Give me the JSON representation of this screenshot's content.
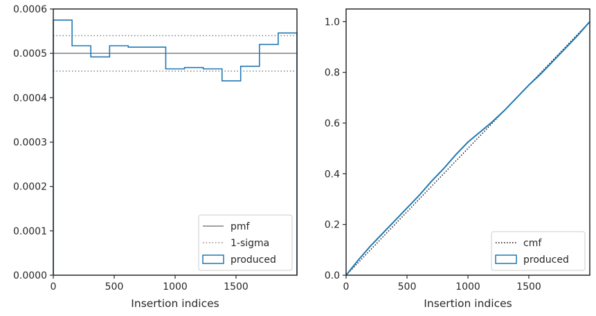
{
  "chart_data": [
    {
      "type": "histogram",
      "xlabel": "Insertion indices",
      "ylabel": "",
      "xlim": [
        0,
        2000
      ],
      "ylim": [
        0,
        0.0006
      ],
      "xticks": [
        0,
        500,
        1000,
        1500
      ],
      "yticks": [
        0.0,
        0.0001,
        0.0002,
        0.0003,
        0.0004,
        0.0005,
        0.0006
      ],
      "xtick_labels": [
        "0",
        "500",
        "1000",
        "1500"
      ],
      "ytick_labels": [
        "0.0000",
        "0.0001",
        "0.0002",
        "0.0003",
        "0.0004",
        "0.0005",
        "0.0006"
      ],
      "grid": false,
      "legend_position": "lower-right",
      "pmf_line": {
        "name": "pmf",
        "value": 0.0005,
        "color": "#808080",
        "style": "solid"
      },
      "sigma_lines": {
        "name": "1-sigma",
        "values": [
          0.00046,
          0.00054
        ],
        "color": "#808080",
        "style": "dotted"
      },
      "series": [
        {
          "name": "produced",
          "color": "#1f77b4",
          "bin_edges": [
            0,
            154,
            308,
            462,
            615,
            769,
            923,
            1077,
            1231,
            1385,
            1538,
            1692,
            1846,
            2000
          ],
          "values": [
            0.000575,
            0.000517,
            0.000492,
            0.000517,
            0.000514,
            0.000514,
            0.000465,
            0.000468,
            0.000465,
            0.000438,
            0.000471,
            0.00052,
            0.000546
          ]
        }
      ]
    },
    {
      "type": "line",
      "xlabel": "Insertion indices",
      "ylabel": "",
      "xlim": [
        0,
        2000
      ],
      "ylim": [
        0,
        1.05
      ],
      "xticks": [
        0,
        500,
        1000,
        1500
      ],
      "yticks": [
        0.0,
        0.2,
        0.4,
        0.6,
        0.8,
        1.0
      ],
      "xtick_labels": [
        "0",
        "500",
        "1000",
        "1500"
      ],
      "ytick_labels": [
        "0.0",
        "0.2",
        "0.4",
        "0.6",
        "0.8",
        "1.0"
      ],
      "grid": false,
      "legend_position": "lower-right",
      "series": [
        {
          "name": "cmf",
          "color": "#000000",
          "style": "dotted",
          "x": [
            0,
            2000
          ],
          "y": [
            0,
            1.0
          ]
        },
        {
          "name": "produced",
          "color": "#1f77b4",
          "style": "solid",
          "x": [
            0,
            100,
            200,
            300,
            400,
            500,
            550,
            600,
            700,
            800,
            900,
            1000,
            1100,
            1200,
            1300,
            1400,
            1500,
            1600,
            1700,
            1800,
            1900,
            2000
          ],
          "y": [
            0,
            0.06,
            0.115,
            0.165,
            0.215,
            0.265,
            0.29,
            0.315,
            0.37,
            0.42,
            0.475,
            0.525,
            0.565,
            0.605,
            0.65,
            0.7,
            0.75,
            0.795,
            0.845,
            0.895,
            0.945,
            1.0
          ]
        }
      ]
    }
  ]
}
